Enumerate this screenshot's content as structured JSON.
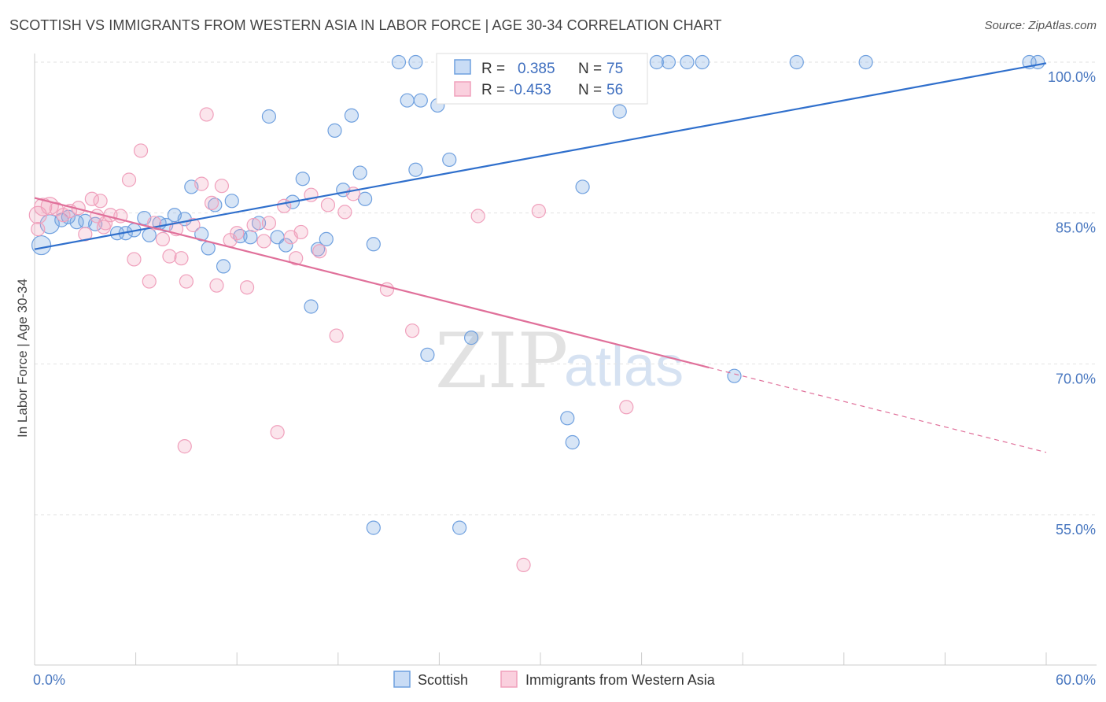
{
  "header": {
    "title": "SCOTTISH VS IMMIGRANTS FROM WESTERN ASIA IN LABOR FORCE | AGE 30-34 CORRELATION CHART",
    "source": "Source: ZipAtlas.com"
  },
  "watermark": {
    "zip": "ZIP",
    "atlas": "atlas"
  },
  "stats": [
    {
      "r_label": "R =",
      "r_value": "0.385",
      "n_label": "N =",
      "n_value": "75",
      "color": "#6fa0df"
    },
    {
      "r_label": "R =",
      "r_value": "-0.453",
      "n_label": "N =",
      "n_value": "56",
      "color": "#f0a0bc"
    }
  ],
  "chart_data": {
    "type": "scatter",
    "title": "SCOTTISH VS IMMIGRANTS FROM WESTERN ASIA IN LABOR FORCE | AGE 30-34 CORRELATION CHART",
    "xlabel": "",
    "ylabel": "In Labor Force | Age 30-34",
    "xlim": [
      0,
      60
    ],
    "ylim": [
      40,
      101
    ],
    "x_tick_labels": [
      {
        "value": 0,
        "label": "0.0%"
      },
      {
        "value": 60,
        "label": "60.0%"
      }
    ],
    "y_tick_labels": [
      {
        "value": 100,
        "label": "100.0%"
      },
      {
        "value": 85,
        "label": "85.0%"
      },
      {
        "value": 70,
        "label": "70.0%"
      },
      {
        "value": 55,
        "label": "55.0%"
      }
    ],
    "grid": true,
    "legend_position": "bottom-center",
    "series": [
      {
        "name": "Scottish",
        "color": "#6fa0df",
        "trend": {
          "x": [
            0,
            60
          ],
          "y": [
            81.4,
            99.9
          ],
          "dashed_from": null
        },
        "points": [
          [
            0.4,
            81.8
          ],
          [
            0.9,
            83.9
          ],
          [
            1.6,
            84.3
          ],
          [
            2.0,
            84.6
          ],
          [
            2.5,
            84.1
          ],
          [
            3.0,
            84.2
          ],
          [
            3.6,
            83.9
          ],
          [
            4.9,
            83.0
          ],
          [
            5.4,
            83.0
          ],
          [
            5.9,
            83.3
          ],
          [
            6.5,
            84.5
          ],
          [
            6.8,
            82.8
          ],
          [
            7.4,
            84.0
          ],
          [
            7.8,
            83.8
          ],
          [
            8.3,
            84.8
          ],
          [
            8.9,
            84.4
          ],
          [
            9.3,
            87.6
          ],
          [
            9.9,
            82.9
          ],
          [
            10.3,
            81.5
          ],
          [
            10.7,
            85.8
          ],
          [
            11.2,
            79.7
          ],
          [
            11.7,
            86.2
          ],
          [
            12.2,
            82.7
          ],
          [
            12.8,
            82.6
          ],
          [
            13.3,
            84.0
          ],
          [
            13.9,
            94.6
          ],
          [
            14.4,
            82.6
          ],
          [
            14.9,
            81.8
          ],
          [
            15.3,
            86.1
          ],
          [
            15.9,
            88.4
          ],
          [
            16.4,
            75.7
          ],
          [
            16.8,
            81.4
          ],
          [
            17.3,
            82.4
          ],
          [
            17.8,
            93.2
          ],
          [
            18.3,
            87.3
          ],
          [
            18.8,
            94.7
          ],
          [
            19.3,
            89.0
          ],
          [
            19.6,
            86.4
          ],
          [
            20.1,
            81.9
          ],
          [
            21.6,
            100.0
          ],
          [
            22.1,
            96.2
          ],
          [
            22.6,
            89.3
          ],
          [
            22.9,
            96.2
          ],
          [
            23.3,
            70.9
          ],
          [
            23.9,
            95.7
          ],
          [
            24.6,
            90.3
          ],
          [
            25.3,
            100.0
          ],
          [
            25.9,
            72.6
          ],
          [
            26.7,
            100.0
          ],
          [
            27.4,
            100.0
          ],
          [
            28.3,
            100.0
          ],
          [
            29.0,
            100.0
          ],
          [
            29.9,
            100.0
          ],
          [
            31.0,
            100.0
          ],
          [
            31.6,
            64.6
          ],
          [
            31.9,
            62.2
          ],
          [
            32.5,
            87.6
          ],
          [
            33.0,
            100.0
          ],
          [
            34.0,
            100.0
          ],
          [
            34.6,
            100.0
          ],
          [
            35.8,
            100.0
          ],
          [
            36.9,
            100.0
          ],
          [
            37.6,
            100.0
          ],
          [
            38.7,
            100.0
          ],
          [
            39.6,
            100.0
          ],
          [
            41.5,
            68.8
          ],
          [
            45.2,
            100.0
          ],
          [
            49.3,
            100.0
          ],
          [
            59.0,
            100.0
          ],
          [
            59.5,
            100.0
          ],
          [
            20.1,
            53.7
          ],
          [
            25.2,
            53.7
          ],
          [
            33.4,
            100.0
          ],
          [
            34.7,
            95.1
          ],
          [
            22.6,
            100.0
          ]
        ]
      },
      {
        "name": "Immigrants from Western Asia",
        "color": "#f0a0bc",
        "trend": {
          "x": [
            0,
            60
          ],
          "y": [
            86.5,
            61.2
          ],
          "dashed_from": 40
        },
        "points": [
          [
            0.2,
            84.8
          ],
          [
            0.5,
            85.6
          ],
          [
            0.9,
            85.7
          ],
          [
            1.3,
            85.4
          ],
          [
            1.7,
            84.8
          ],
          [
            2.1,
            85.2
          ],
          [
            2.6,
            85.5
          ],
          [
            3.0,
            82.9
          ],
          [
            3.4,
            86.4
          ],
          [
            3.7,
            84.7
          ],
          [
            3.9,
            86.2
          ],
          [
            4.1,
            83.6
          ],
          [
            4.5,
            84.8
          ],
          [
            5.1,
            84.7
          ],
          [
            5.6,
            88.3
          ],
          [
            5.9,
            80.4
          ],
          [
            6.3,
            91.2
          ],
          [
            6.8,
            78.2
          ],
          [
            7.1,
            84.0
          ],
          [
            7.6,
            82.4
          ],
          [
            8.0,
            80.7
          ],
          [
            8.4,
            83.4
          ],
          [
            8.7,
            80.5
          ],
          [
            9.0,
            78.2
          ],
          [
            9.4,
            83.8
          ],
          [
            9.9,
            87.9
          ],
          [
            10.2,
            94.8
          ],
          [
            10.5,
            86.0
          ],
          [
            10.8,
            77.8
          ],
          [
            11.1,
            87.7
          ],
          [
            11.6,
            82.3
          ],
          [
            12.0,
            83.0
          ],
          [
            12.6,
            77.6
          ],
          [
            13.0,
            83.8
          ],
          [
            13.6,
            82.2
          ],
          [
            13.9,
            84.0
          ],
          [
            14.4,
            63.2
          ],
          [
            14.8,
            85.7
          ],
          [
            15.2,
            82.6
          ],
          [
            15.5,
            80.5
          ],
          [
            15.8,
            83.1
          ],
          [
            16.4,
            86.8
          ],
          [
            16.9,
            81.2
          ],
          [
            17.4,
            85.8
          ],
          [
            17.9,
            72.8
          ],
          [
            18.4,
            85.1
          ],
          [
            18.9,
            86.9
          ],
          [
            20.9,
            77.4
          ],
          [
            22.4,
            73.3
          ],
          [
            26.3,
            84.7
          ],
          [
            29.0,
            50.0
          ],
          [
            29.9,
            85.2
          ],
          [
            35.1,
            65.7
          ],
          [
            8.9,
            61.8
          ],
          [
            0.2,
            83.4
          ],
          [
            4.2,
            84.0
          ]
        ]
      }
    ]
  }
}
